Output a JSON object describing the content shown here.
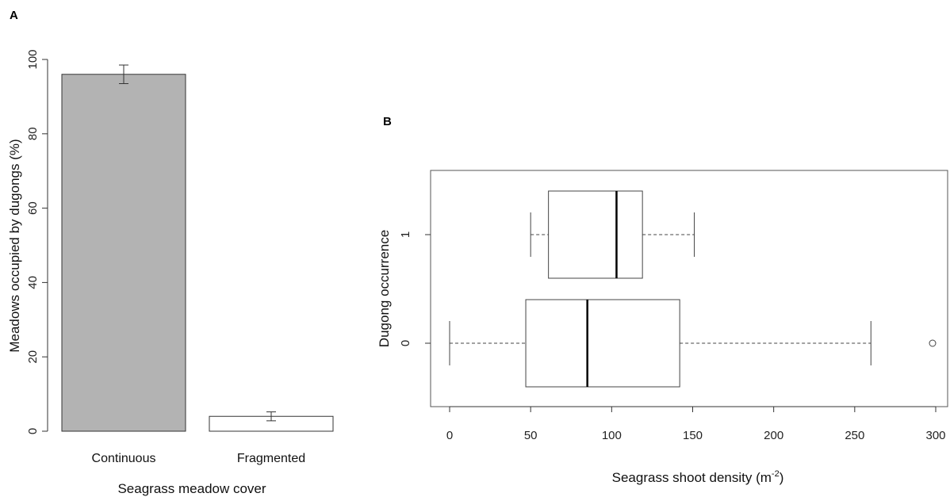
{
  "chart_data": [
    {
      "panel": "A",
      "type": "bar",
      "categories": [
        "Continuous",
        "Fragmented"
      ],
      "values": [
        96,
        4
      ],
      "error_bars": [
        [
          93.5,
          98.5
        ],
        [
          2.8,
          5.2
        ]
      ],
      "bar_colors": [
        "#b3b3b3",
        "#ffffff"
      ],
      "ylabel": "Meadows occupied by dugongs (%)",
      "xlabel": "Seagrass meadow cover",
      "ylim": [
        0,
        100
      ],
      "yticks": [
        "0",
        "20",
        "40",
        "60",
        "80",
        "100"
      ],
      "grid": false
    },
    {
      "panel": "B",
      "type": "box",
      "orientation": "horizontal",
      "xlabel_main": "Seagrass shoot density (m",
      "xlabel_sup": "-2",
      "xlabel_close": ")",
      "ylabel": "Dugong occurrence",
      "xlim": [
        0,
        300
      ],
      "xticks": [
        "0",
        "50",
        "100",
        "150",
        "200",
        "250",
        "300"
      ],
      "groups": [
        {
          "label": "1",
          "whisker_low": 50,
          "q1": 61,
          "median": 103,
          "q3": 119,
          "whisker_high": 151,
          "outliers": []
        },
        {
          "label": "0",
          "whisker_low": 0,
          "q1": 47,
          "median": 85,
          "q3": 142,
          "whisker_high": 260,
          "outliers": [
            300
          ]
        }
      ],
      "grid": false
    }
  ]
}
